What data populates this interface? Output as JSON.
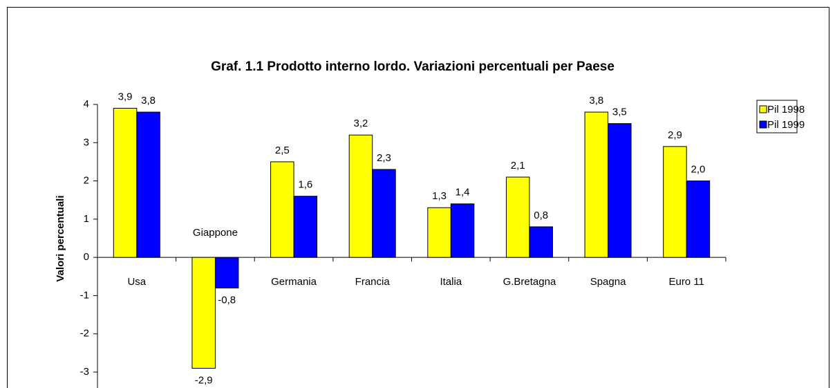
{
  "chart_data": {
    "type": "bar",
    "title": "Graf. 1.1 Prodotto interno lordo. Variazioni percentuali per Paese",
    "ylabel": "Valori percentuali",
    "categories": [
      "Usa",
      "Giappone",
      "Germania",
      "Francia",
      "Italia",
      "G.Bretagna",
      "Spagna",
      "Euro 11"
    ],
    "series": [
      {
        "name": "Pil 1998",
        "color": "#ffff00",
        "values": [
          3.9,
          -2.9,
          2.5,
          3.2,
          1.3,
          2.1,
          3.8,
          2.9
        ],
        "value_labels": [
          "3,9",
          "-2,9",
          "2,5",
          "3,2",
          "1,3",
          "2,1",
          "3,8",
          "2,9"
        ]
      },
      {
        "name": "Pil 1999",
        "color": "#0000ff",
        "values": [
          3.8,
          -0.8,
          1.6,
          2.3,
          1.4,
          0.8,
          3.5,
          2.0
        ],
        "value_labels": [
          "3,8",
          "-0,8",
          "1,6",
          "2,3",
          "1,4",
          "0,8",
          "3,5",
          "2,0"
        ]
      }
    ],
    "ylim": [
      -3,
      4
    ],
    "yticks": [
      -3,
      -2,
      -1,
      0,
      1,
      2,
      3,
      4
    ],
    "grid": false,
    "legend": "upper right"
  }
}
